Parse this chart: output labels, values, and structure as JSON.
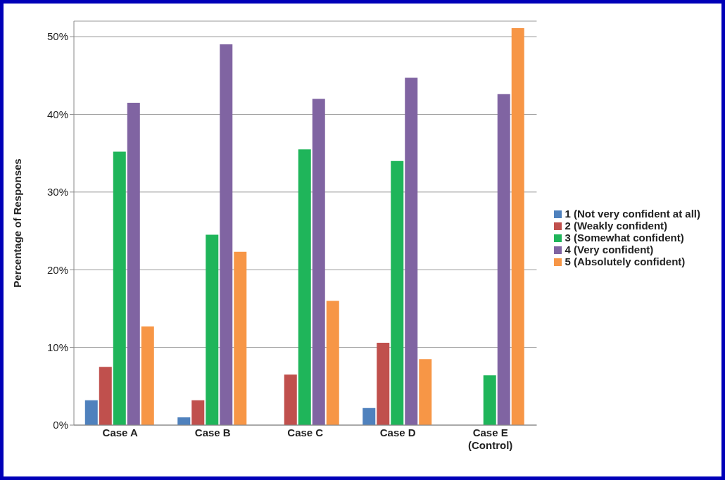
{
  "chart_data": {
    "type": "bar",
    "ylabel": "Percentage of Responses",
    "categories": [
      "Case A",
      "Case B",
      "Case C",
      "Case D",
      "Case E\n(Control)"
    ],
    "series": [
      {
        "name": "1 (Not very confident at all)",
        "color": "#4f81bd",
        "values": [
          3.2,
          1.0,
          0,
          2.2,
          0
        ]
      },
      {
        "name": "2 (Weakly confident)",
        "color": "#c0504d",
        "values": [
          7.5,
          3.2,
          6.5,
          10.6,
          0
        ]
      },
      {
        "name": "3 (Somewhat confident)",
        "color": "#1fb55a",
        "values": [
          35.2,
          24.5,
          35.5,
          34.0,
          6.4
        ]
      },
      {
        "name": "4 (Very confident)",
        "color": "#8064a2",
        "values": [
          41.5,
          49.0,
          42.0,
          44.7,
          42.6
        ]
      },
      {
        "name": "5 (Absolutely confident)",
        "color": "#f79646",
        "values": [
          12.7,
          22.3,
          16.0,
          8.5,
          51.1
        ]
      }
    ],
    "ylim": [
      0,
      52
    ],
    "yticks": [
      {
        "value": 0,
        "label": "0%"
      },
      {
        "value": 10,
        "label": "10%"
      },
      {
        "value": 20,
        "label": "20%"
      },
      {
        "value": 30,
        "label": "30%"
      },
      {
        "value": 40,
        "label": "40%"
      },
      {
        "value": 50,
        "label": "50%"
      }
    ],
    "grid": "y",
    "legend": "right"
  }
}
